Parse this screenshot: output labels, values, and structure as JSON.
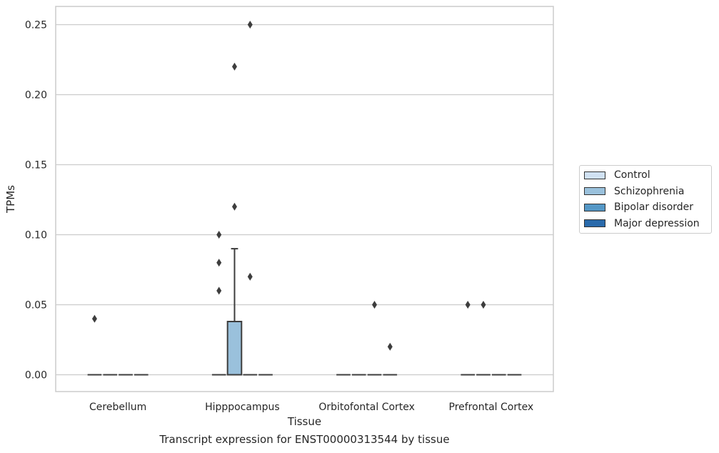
{
  "chart_data": {
    "type": "box",
    "xlabel": "Tissue",
    "ylabel": "TPMs",
    "caption": "Transcript expression for ENST00000313544 by tissue",
    "ylim": [
      -0.012,
      0.263
    ],
    "yticks": [
      0.0,
      0.05,
      0.1,
      0.15,
      0.2,
      0.25
    ],
    "ytick_labels": [
      "0.00",
      "0.05",
      "0.10",
      "0.15",
      "0.20",
      "0.25"
    ],
    "grid": "horizontal",
    "legend_position": "right",
    "categories": [
      "Cerebellum",
      "Hipppocampus",
      "Orbitofontal Cortex",
      "Prefrontal Cortex"
    ],
    "series": [
      {
        "name": "Control",
        "color": "#d0e1f2",
        "boxes": [
          {
            "category": "Cerebellum",
            "q1": 0,
            "median": 0,
            "q3": 0,
            "whisker_low": 0,
            "whisker_high": 0,
            "outliers": [
              0.04
            ]
          },
          {
            "category": "Hipppocampus",
            "q1": 0,
            "median": 0,
            "q3": 0,
            "whisker_low": 0,
            "whisker_high": 0,
            "outliers": [
              0.06,
              0.08,
              0.1
            ]
          },
          {
            "category": "Orbitofontal Cortex",
            "q1": 0,
            "median": 0,
            "q3": 0,
            "whisker_low": 0,
            "whisker_high": 0,
            "outliers": []
          },
          {
            "category": "Prefrontal Cortex",
            "q1": 0,
            "median": 0,
            "q3": 0,
            "whisker_low": 0,
            "whisker_high": 0,
            "outliers": [
              0.05
            ]
          }
        ]
      },
      {
        "name": "Schizophrenia",
        "color": "#9ac1dc",
        "boxes": [
          {
            "category": "Cerebellum",
            "q1": 0,
            "median": 0,
            "q3": 0,
            "whisker_low": 0,
            "whisker_high": 0,
            "outliers": []
          },
          {
            "category": "Hipppocampus",
            "q1": 0,
            "median": 0,
            "q3": 0.038,
            "whisker_low": 0,
            "whisker_high": 0.09,
            "outliers": [
              0.12,
              0.22
            ]
          },
          {
            "category": "Orbitofontal Cortex",
            "q1": 0,
            "median": 0,
            "q3": 0,
            "whisker_low": 0,
            "whisker_high": 0,
            "outliers": []
          },
          {
            "category": "Prefrontal Cortex",
            "q1": 0,
            "median": 0,
            "q3": 0,
            "whisker_low": 0,
            "whisker_high": 0,
            "outliers": [
              0.05
            ]
          }
        ]
      },
      {
        "name": "Bipolar disorder",
        "color": "#5497c6",
        "boxes": [
          {
            "category": "Cerebellum",
            "q1": 0,
            "median": 0,
            "q3": 0,
            "whisker_low": 0,
            "whisker_high": 0,
            "outliers": []
          },
          {
            "category": "Hipppocampus",
            "q1": 0,
            "median": 0,
            "q3": 0,
            "whisker_low": 0,
            "whisker_high": 0,
            "outliers": [
              0.07,
              0.25
            ]
          },
          {
            "category": "Orbitofontal Cortex",
            "q1": 0,
            "median": 0,
            "q3": 0,
            "whisker_low": 0,
            "whisker_high": 0,
            "outliers": [
              0.05
            ]
          },
          {
            "category": "Prefrontal Cortex",
            "q1": 0,
            "median": 0,
            "q3": 0,
            "whisker_low": 0,
            "whisker_high": 0,
            "outliers": []
          }
        ]
      },
      {
        "name": "Major depression",
        "color": "#2a6aab",
        "boxes": [
          {
            "category": "Cerebellum",
            "q1": 0,
            "median": 0,
            "q3": 0,
            "whisker_low": 0,
            "whisker_high": 0,
            "outliers": []
          },
          {
            "category": "Hipppocampus",
            "q1": 0,
            "median": 0,
            "q3": 0,
            "whisker_low": 0,
            "whisker_high": 0,
            "outliers": []
          },
          {
            "category": "Orbitofontal Cortex",
            "q1": 0,
            "median": 0,
            "q3": 0,
            "whisker_low": 0,
            "whisker_high": 0,
            "outliers": [
              0.02
            ]
          },
          {
            "category": "Prefrontal Cortex",
            "q1": 0,
            "median": 0,
            "q3": 0,
            "whisker_low": 0,
            "whisker_high": 0,
            "outliers": []
          }
        ]
      }
    ]
  }
}
